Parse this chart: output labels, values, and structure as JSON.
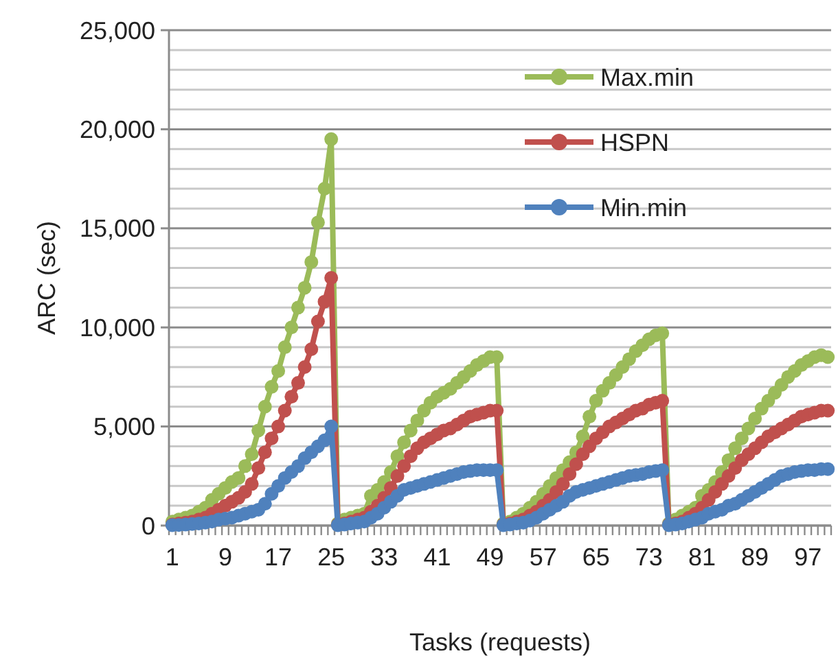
{
  "chart_data": {
    "type": "line",
    "xlabel": "Tasks (requests)",
    "ylabel": "ARC (sec)",
    "categories": [
      "1",
      null,
      null,
      null,
      null,
      null,
      null,
      null,
      "9",
      null,
      null,
      null,
      null,
      null,
      null,
      null,
      "17",
      null,
      null,
      null,
      null,
      null,
      null,
      null,
      "25",
      null,
      null,
      null,
      null,
      null,
      null,
      null,
      "33",
      null,
      null,
      null,
      null,
      null,
      null,
      null,
      "41",
      null,
      null,
      null,
      null,
      null,
      null,
      null,
      "49",
      null,
      null,
      null,
      null,
      null,
      null,
      null,
      "57",
      null,
      null,
      null,
      null,
      null,
      null,
      null,
      "65",
      null,
      null,
      null,
      null,
      null,
      null,
      null,
      "73",
      null,
      null,
      null,
      null,
      null,
      null,
      null,
      "81",
      null,
      null,
      null,
      null,
      null,
      null,
      null,
      "89",
      null,
      null,
      null,
      null,
      null,
      null,
      null,
      "97",
      null,
      null,
      null
    ],
    "ylim": [
      0,
      25000
    ],
    "yticks": [
      {
        "value": 0,
        "label": "0"
      },
      {
        "value": 1000,
        "label": null
      },
      {
        "value": 2000,
        "label": null
      },
      {
        "value": 3000,
        "label": null
      },
      {
        "value": 4000,
        "label": null
      },
      {
        "value": 5000,
        "label": "5,000"
      },
      {
        "value": 6000,
        "label": null
      },
      {
        "value": 7000,
        "label": null
      },
      {
        "value": 8000,
        "label": null
      },
      {
        "value": 9000,
        "label": null
      },
      {
        "value": 10000,
        "label": "10,000"
      },
      {
        "value": 11000,
        "label": null
      },
      {
        "value": 12000,
        "label": null
      },
      {
        "value": 13000,
        "label": null
      },
      {
        "value": 14000,
        "label": null
      },
      {
        "value": 15000,
        "label": "15,000"
      },
      {
        "value": 16000,
        "label": null
      },
      {
        "value": 17000,
        "label": null
      },
      {
        "value": 18000,
        "label": null
      },
      {
        "value": 19000,
        "label": null
      },
      {
        "value": 20000,
        "label": "20,000"
      },
      {
        "value": 21000,
        "label": null
      },
      {
        "value": 22000,
        "label": null
      },
      {
        "value": 23000,
        "label": null
      },
      {
        "value": 24000,
        "label": null
      },
      {
        "value": 25000,
        "label": "25,000"
      }
    ],
    "grid": "y",
    "legend": "top right",
    "marker": "circle",
    "line_style": "solid",
    "series": [
      {
        "name": "Max.min",
        "color": "#9bbb59",
        "values": [
          200,
          300,
          400,
          500,
          700,
          900,
          1300,
          1600,
          1900,
          2200,
          2400,
          3000,
          3600,
          4800,
          6000,
          7000,
          7800,
          9000,
          10000,
          11000,
          12000,
          13300,
          15300,
          17000,
          19500,
          100,
          300,
          400,
          500,
          600,
          1500,
          1800,
          2200,
          2700,
          3500,
          4200,
          4800,
          5300,
          5800,
          6200,
          6500,
          6700,
          6900,
          7200,
          7500,
          7800,
          8100,
          8300,
          8500,
          8500,
          100,
          200,
          400,
          600,
          900,
          1200,
          1600,
          2000,
          2400,
          2800,
          3200,
          3700,
          4500,
          5500,
          6300,
          6800,
          7200,
          7600,
          8000,
          8400,
          8800,
          9100,
          9400,
          9600,
          9700,
          100,
          300,
          500,
          700,
          900,
          1500,
          1800,
          2200,
          2700,
          3300,
          3900,
          4400,
          4900,
          5400,
          5900,
          6300,
          6700,
          7100,
          7500,
          7800,
          8100,
          8300,
          8500,
          8600,
          8500
        ]
      },
      {
        "name": "HSPN",
        "color": "#c0504d",
        "values": [
          50,
          100,
          150,
          200,
          300,
          400,
          600,
          800,
          1000,
          1200,
          1400,
          1700,
          2100,
          2900,
          3700,
          4400,
          5000,
          5800,
          6500,
          7200,
          8000,
          8900,
          10300,
          11300,
          12500,
          50,
          100,
          200,
          300,
          400,
          700,
          1000,
          1400,
          1900,
          2500,
          3000,
          3500,
          3900,
          4200,
          4400,
          4600,
          4800,
          4900,
          5100,
          5300,
          5500,
          5600,
          5700,
          5800,
          5800,
          50,
          100,
          200,
          300,
          500,
          700,
          1000,
          1300,
          1700,
          2100,
          2600,
          3100,
          3600,
          4000,
          4400,
          4700,
          5000,
          5200,
          5400,
          5600,
          5800,
          5900,
          6100,
          6200,
          6300,
          50,
          100,
          200,
          400,
          600,
          900,
          1300,
          1700,
          2100,
          2500,
          2900,
          3300,
          3600,
          3900,
          4200,
          4500,
          4700,
          4900,
          5100,
          5300,
          5500,
          5600,
          5700,
          5800,
          5800
        ]
      },
      {
        "name": "Min.min",
        "color": "#4f81bd",
        "values": [
          20,
          30,
          50,
          80,
          100,
          150,
          200,
          300,
          350,
          400,
          500,
          600,
          700,
          800,
          1100,
          1600,
          2000,
          2400,
          2700,
          3000,
          3400,
          3700,
          4000,
          4300,
          5000,
          20,
          50,
          100,
          150,
          200,
          400,
          600,
          900,
          1200,
          1500,
          1800,
          1900,
          2000,
          2100,
          2200,
          2300,
          2400,
          2500,
          2600,
          2700,
          2750,
          2800,
          2800,
          2800,
          2800,
          20,
          50,
          100,
          150,
          250,
          400,
          600,
          800,
          1000,
          1200,
          1500,
          1700,
          1800,
          1900,
          2000,
          2100,
          2200,
          2300,
          2400,
          2500,
          2550,
          2600,
          2700,
          2750,
          2800,
          20,
          50,
          100,
          200,
          300,
          400,
          600,
          700,
          800,
          1000,
          1100,
          1300,
          1500,
          1700,
          1900,
          2100,
          2300,
          2500,
          2600,
          2700,
          2750,
          2800,
          2800,
          2850,
          2850
        ]
      }
    ]
  }
}
